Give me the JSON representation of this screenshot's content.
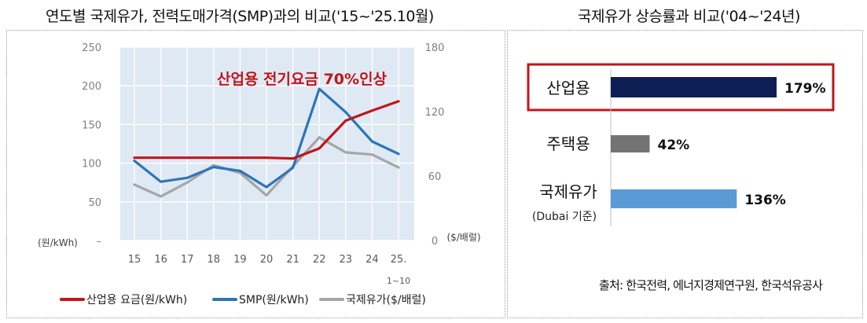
{
  "titles": {
    "left": "연도별 국제유가, 전력도매가격(SMP)과의 비교('15~'25.10월)",
    "right": "국제유가 상승률과 비교('04~'24년)"
  },
  "source": "출처: 한국전력, 에너지경제연구원, 한국석유공사",
  "chart_data": [
    {
      "type": "line",
      "x": [
        "15",
        "16",
        "17",
        "18",
        "19",
        "20",
        "21",
        "22",
        "23",
        "24",
        "25."
      ],
      "x_sublabel": "1~10",
      "annotation": "산업용 전기요금 70%인상",
      "left_axis": {
        "unit": "(원/kWh)",
        "ticks": [
          "250",
          "200",
          "150",
          "100",
          "50",
          "–"
        ],
        "ylim": [
          0,
          250
        ]
      },
      "right_axis": {
        "unit": "($/배럴)",
        "ticks": [
          "180",
          "120",
          "60",
          "0"
        ],
        "ylim": [
          0,
          180
        ]
      },
      "grid": true,
      "legend_position": "bottom",
      "series": [
        {
          "name": "산업용 요금(원/kWh)",
          "axis": "left",
          "color": "#c0161b",
          "values": [
            107,
            107,
            107,
            107,
            107,
            107,
            106,
            119,
            155,
            168,
            180
          ]
        },
        {
          "name": "SMP(원/kWh)",
          "axis": "left",
          "color": "#2e75b6",
          "values": [
            103,
            76,
            81,
            95,
            90,
            69,
            94,
            196,
            166,
            128,
            112
          ]
        },
        {
          "name": "국제유가($/배럴)",
          "axis": "right",
          "color": "#a6a6a6",
          "values": [
            52,
            41,
            54,
            70,
            63,
            42,
            69,
            96,
            82,
            80,
            68
          ]
        }
      ]
    },
    {
      "type": "bar",
      "orientation": "horizontal",
      "categories": [
        "산업용",
        "주택용",
        "국제유가"
      ],
      "category_sublabels": [
        "",
        "",
        "(Dubai 기준)"
      ],
      "values": [
        179,
        42,
        136
      ],
      "value_labels": [
        "179%",
        "42%",
        "136%"
      ],
      "colors": [
        "#0d1f55",
        "#737373",
        "#5b9bd5"
      ],
      "highlight": "산업용",
      "highlight_color": "#c0161b",
      "xlim": [
        0,
        200
      ]
    }
  ]
}
